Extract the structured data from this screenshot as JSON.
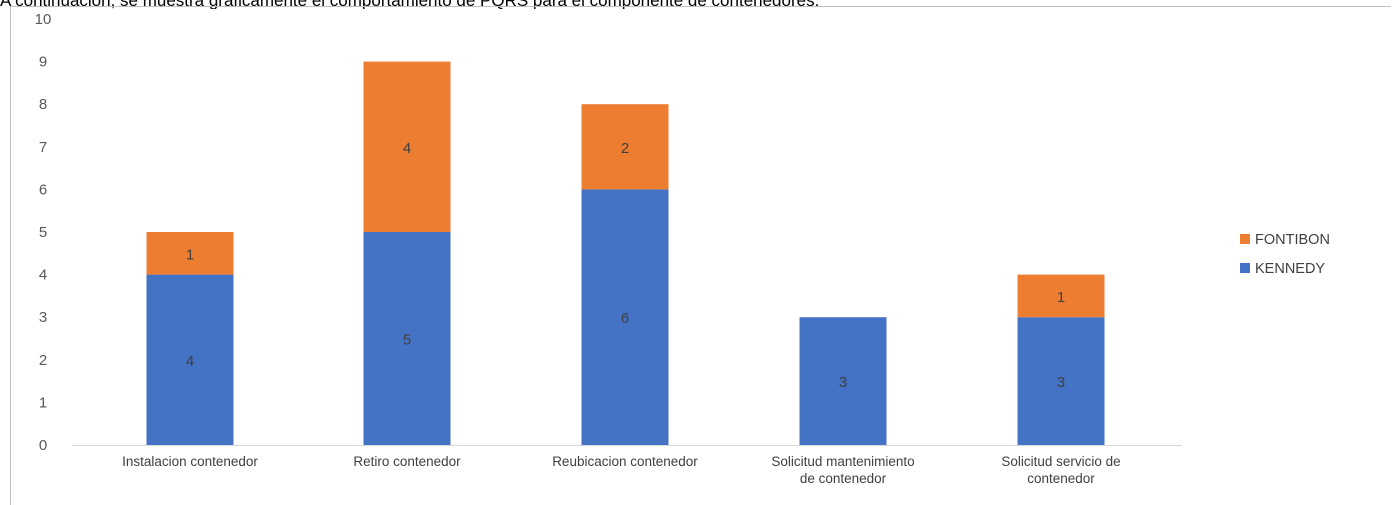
{
  "caption": "A continuación, se muestra gráficamente el comportamiento de PQRS para el componente de contenedores.",
  "chart_data": {
    "type": "bar",
    "stacked": true,
    "categories": [
      [
        "Instalacion contenedor"
      ],
      [
        "Retiro contenedor"
      ],
      [
        "Reubicacion contenedor"
      ],
      [
        "Solicitud mantenimiento",
        "de contenedor"
      ],
      [
        "Solicitud servicio de",
        "contenedor"
      ]
    ],
    "series": [
      {
        "name": "KENNEDY",
        "color": "#4472c4",
        "values": [
          4,
          5,
          6,
          3,
          3
        ]
      },
      {
        "name": "FONTIBON",
        "color": "#ed7d31",
        "values": [
          1,
          4,
          2,
          0,
          1
        ]
      }
    ],
    "ylim": [
      0,
      10
    ],
    "yticks": [
      0,
      1,
      2,
      3,
      4,
      5,
      6,
      7,
      8,
      9,
      10
    ],
    "legend_position": "right",
    "legend_order": [
      "FONTIBON",
      "KENNEDY"
    ],
    "grid": false
  }
}
